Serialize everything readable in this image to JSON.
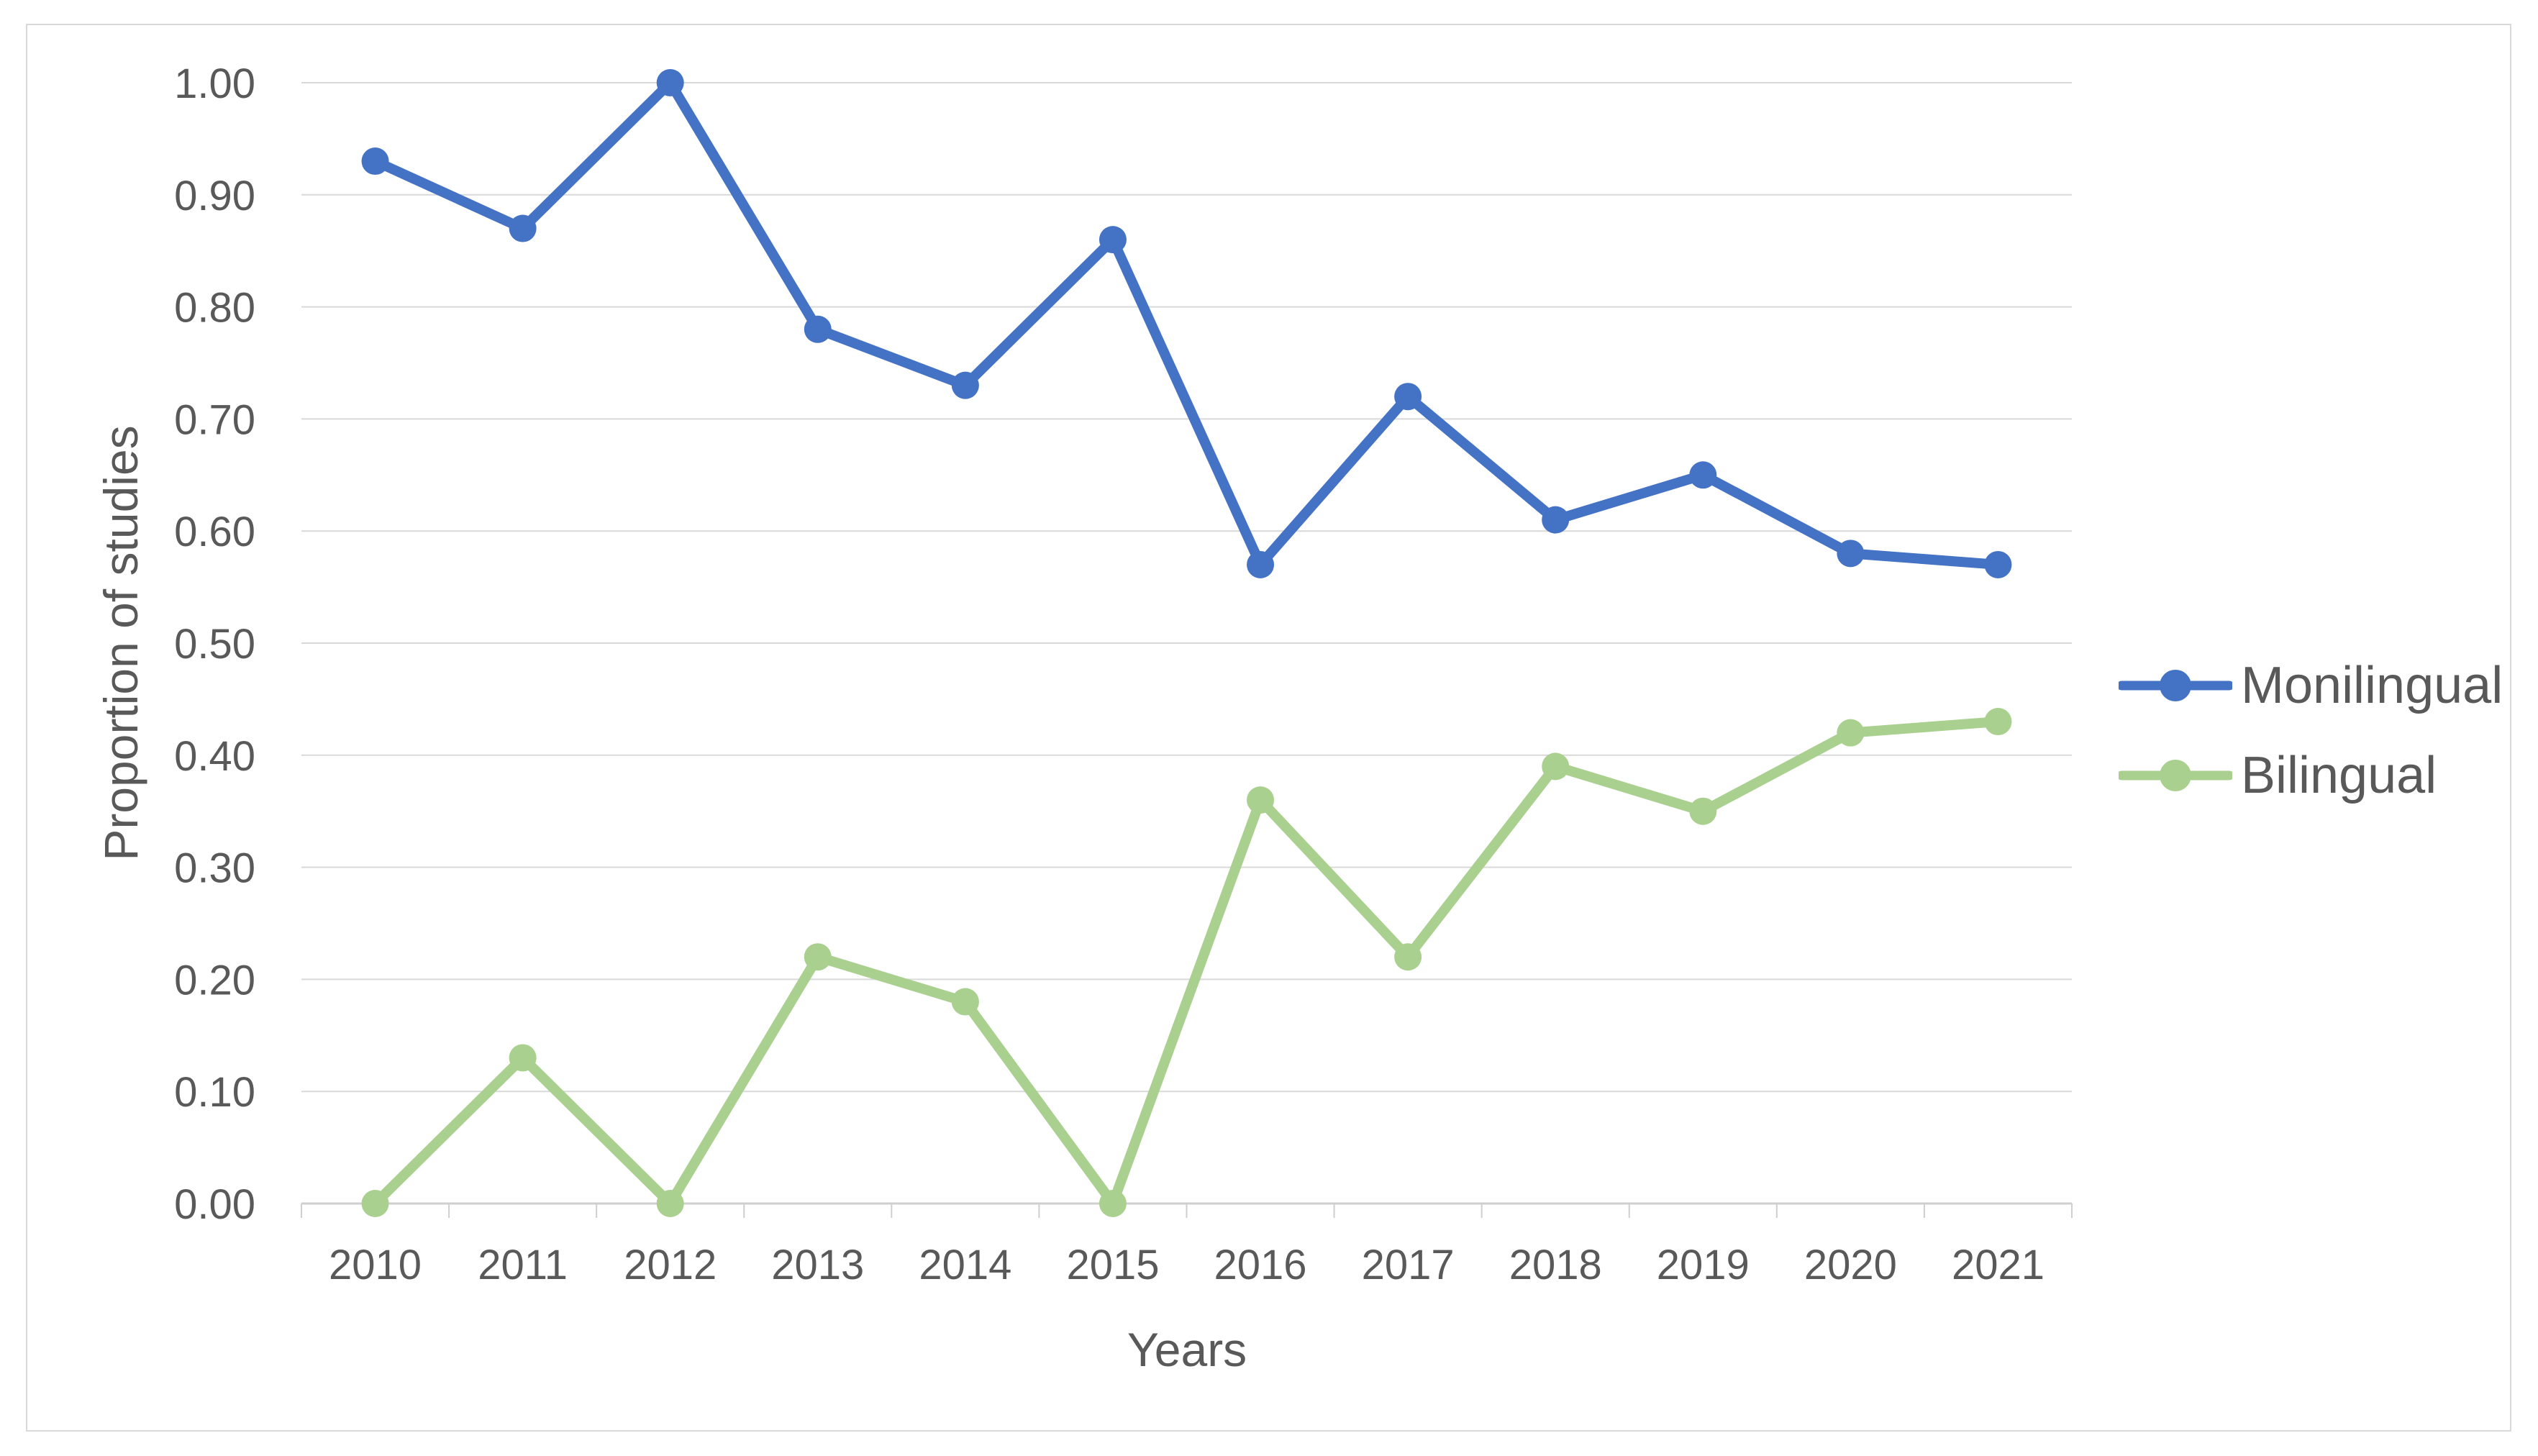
{
  "figure": {
    "background_color": "#FFFFFF",
    "frame_border_color": "#D9D9D9"
  },
  "chart_data": {
    "type": "line",
    "title": "",
    "xlabel": "Years",
    "ylabel": "Proportion of studies",
    "categories": [
      "2010",
      "2011",
      "2012",
      "2013",
      "2014",
      "2015",
      "2016",
      "2017",
      "2018",
      "2019",
      "2020",
      "2021"
    ],
    "series": [
      {
        "name": "Monilingual",
        "color": "#4472C4",
        "values": [
          0.93,
          0.87,
          1.0,
          0.78,
          0.73,
          0.86,
          0.57,
          0.72,
          0.61,
          0.65,
          0.58,
          0.57
        ]
      },
      {
        "name": "Bilingual",
        "color": "#A9D08E",
        "values": [
          0.0,
          0.13,
          0.0,
          0.22,
          0.18,
          0.0,
          0.36,
          0.22,
          0.39,
          0.35,
          0.42,
          0.43
        ]
      }
    ],
    "ylim": [
      0,
      1
    ],
    "y_ticks": [
      "1.00",
      "0.90",
      "0.80",
      "0.70",
      "0.60",
      "0.50",
      "0.40",
      "0.30",
      "0.20",
      "0.10",
      "0.00"
    ],
    "grid": "horizontal",
    "gridline_color": "#D9D9D9",
    "axis_line_color": "#CFCFCF",
    "axis_text_color": "#595959",
    "legend_position": "right"
  }
}
